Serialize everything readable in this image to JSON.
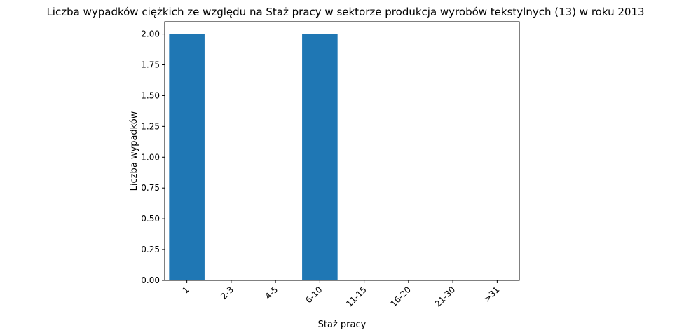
{
  "chart_data": {
    "type": "bar",
    "title": "Liczba wypadków ciężkich ze względu na Staż pracy w sektorze produkcja wyrobów tekstylnych  (13)   w roku 2013",
    "xlabel": "Staż pracy",
    "ylabel": "Liczba wypadków",
    "categories": [
      "1",
      "2-3",
      "4-5",
      "6-10",
      "11-15",
      "16-20",
      "21-30",
      ">31"
    ],
    "values": [
      2,
      0,
      0,
      2,
      0,
      0,
      0,
      0
    ],
    "ylim": [
      0,
      2.1
    ],
    "yticks": [
      "0.00",
      "0.25",
      "0.50",
      "0.75",
      "1.00",
      "1.25",
      "1.50",
      "1.75",
      "2.00"
    ],
    "bar_color": "#1f77b4",
    "grid": false,
    "legend": "none"
  }
}
